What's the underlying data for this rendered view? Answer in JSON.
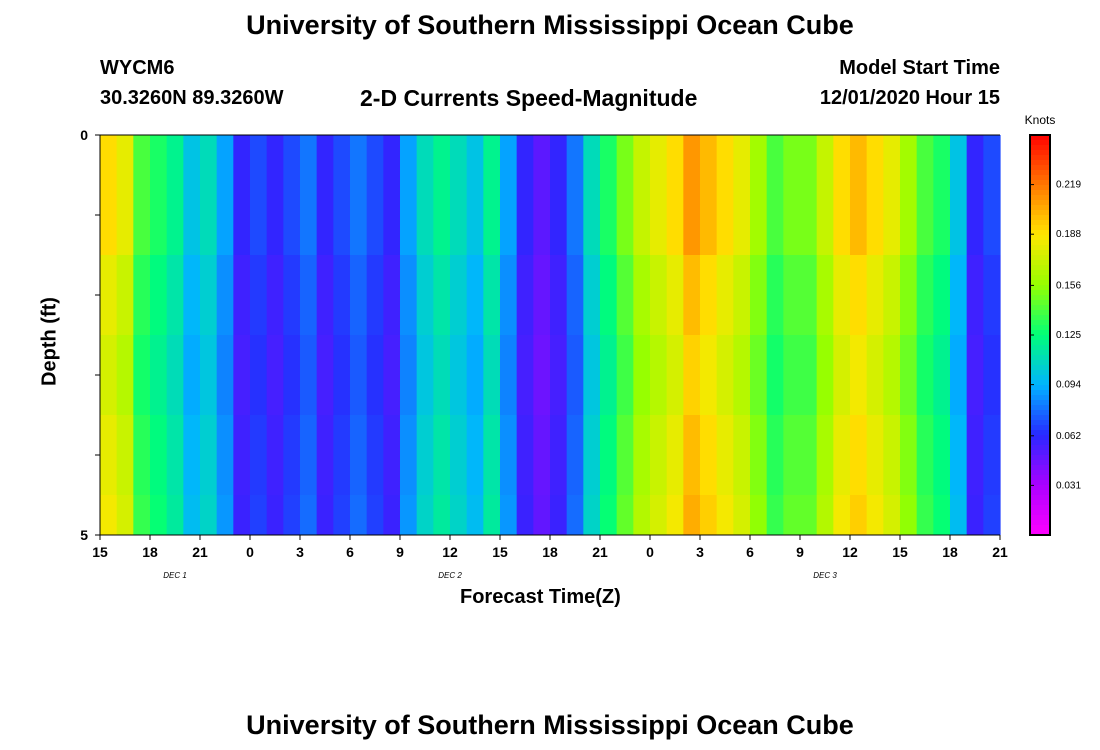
{
  "header": {
    "title_top": "University of Southern Mississippi Ocean Cube",
    "title_bottom": "University of Southern Mississippi Ocean Cube",
    "station": "WYCM6",
    "coords": "30.3260N 89.3260W",
    "product": "2-D Currents Speed-Magnitude",
    "model_start_label": "Model Start Time",
    "model_start_value": "12/01/2020 Hour 15"
  },
  "chart_data": {
    "type": "heatmap",
    "title": "2-D Currents Speed-Magnitude",
    "xlabel": "Forecast Time(Z)",
    "ylabel": "Depth (ft)",
    "x_tick_labels": [
      "15",
      "18",
      "21",
      "0",
      "3",
      "6",
      "9",
      "12",
      "15",
      "18",
      "21",
      "0",
      "3",
      "6",
      "9",
      "12",
      "15",
      "18",
      "21"
    ],
    "x_day_labels": [
      {
        "label": "DEC 1",
        "hour_index": 4.5
      },
      {
        "label": "DEC 2",
        "hour_index": 21
      },
      {
        "label": "DEC 3",
        "hour_index": 43.5
      }
    ],
    "y_tick_labels": [
      "0",
      "5"
    ],
    "ylim": [
      0,
      5
    ],
    "x_hours": 54,
    "depth_levels": [
      0.25,
      0.75,
      1.75,
      2.75,
      3.75,
      4.75
    ],
    "colorbar": {
      "unit": "Knots",
      "ticks": [
        "0.219",
        "0.188",
        "0.156",
        "0.125",
        "0.094",
        "0.062",
        "0.031"
      ],
      "range": [
        0,
        0.25
      ]
    },
    "speed_profile_knots": [
      0.19,
      0.18,
      0.14,
      0.13,
      0.12,
      0.1,
      0.11,
      0.09,
      0.06,
      0.07,
      0.06,
      0.07,
      0.08,
      0.06,
      0.07,
      0.08,
      0.07,
      0.06,
      0.09,
      0.11,
      0.12,
      0.11,
      0.1,
      0.12,
      0.09,
      0.06,
      0.05,
      0.06,
      0.08,
      0.11,
      0.13,
      0.15,
      0.17,
      0.18,
      0.19,
      0.21,
      0.2,
      0.19,
      0.18,
      0.16,
      0.14,
      0.15,
      0.15,
      0.17,
      0.19,
      0.2,
      0.19,
      0.18,
      0.16,
      0.14,
      0.13,
      0.1,
      0.06,
      0.07
    ],
    "depth_factor": [
      1.0,
      1.0,
      0.95,
      0.92,
      0.95,
      0.97
    ]
  }
}
